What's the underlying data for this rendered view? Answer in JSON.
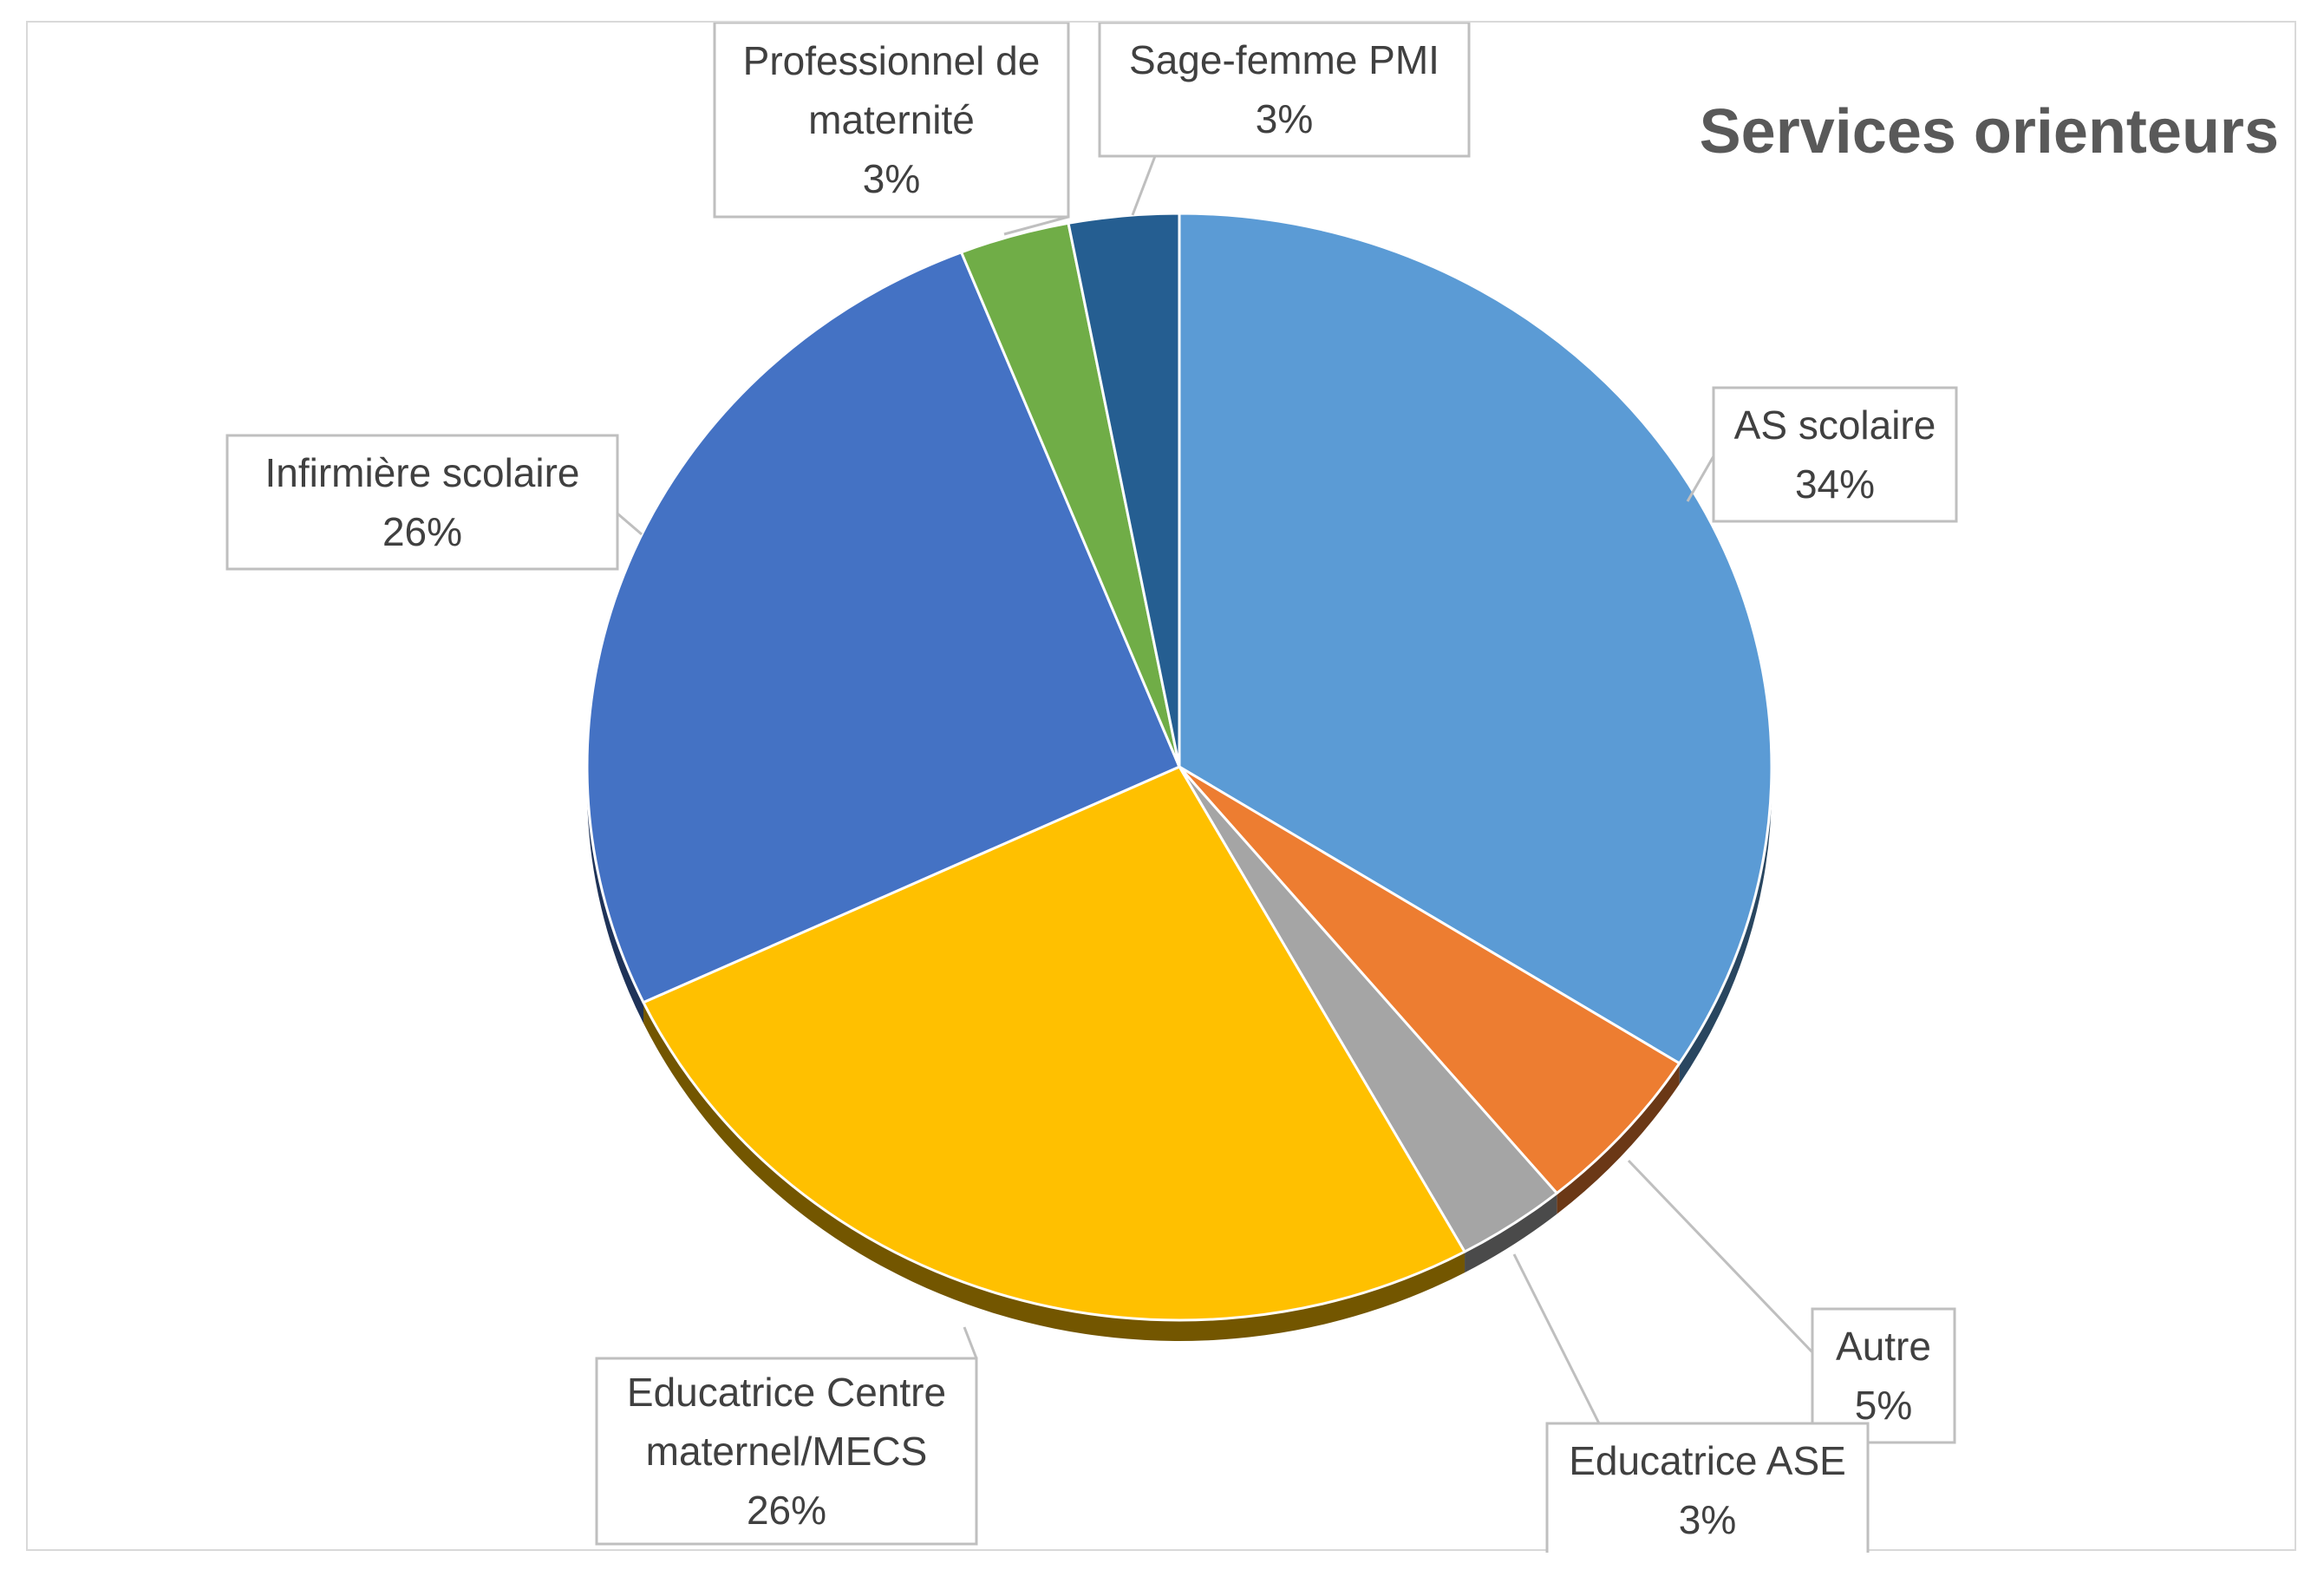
{
  "chart_data": {
    "type": "pie",
    "title": "Services orienteurs",
    "slices": [
      {
        "name": "AS scolaire",
        "value": 34,
        "label": "34%",
        "color": "#5b9bd5"
      },
      {
        "name": "Autre",
        "value": 5,
        "label": "5%",
        "color": "#ed7d31"
      },
      {
        "name": "Educatrice ASE",
        "value": 3,
        "label": "3%",
        "color": "#a5a5a5"
      },
      {
        "name": "Educatrice Centre maternel/MECS",
        "value": 26,
        "label": "26%",
        "color": "#ffc000"
      },
      {
        "name": "Infirmière scolaire",
        "value": 26,
        "label": "26%",
        "color": "#4472c4"
      },
      {
        "name": "Professionnel de maternité",
        "value": 3,
        "label": "3%",
        "color": "#70ad47"
      },
      {
        "name": "Sage-femme PMI",
        "value": 3,
        "label": "3%",
        "color": "#255e91"
      }
    ],
    "legend": "none",
    "data_labels": "callouts with category name and percentage"
  }
}
